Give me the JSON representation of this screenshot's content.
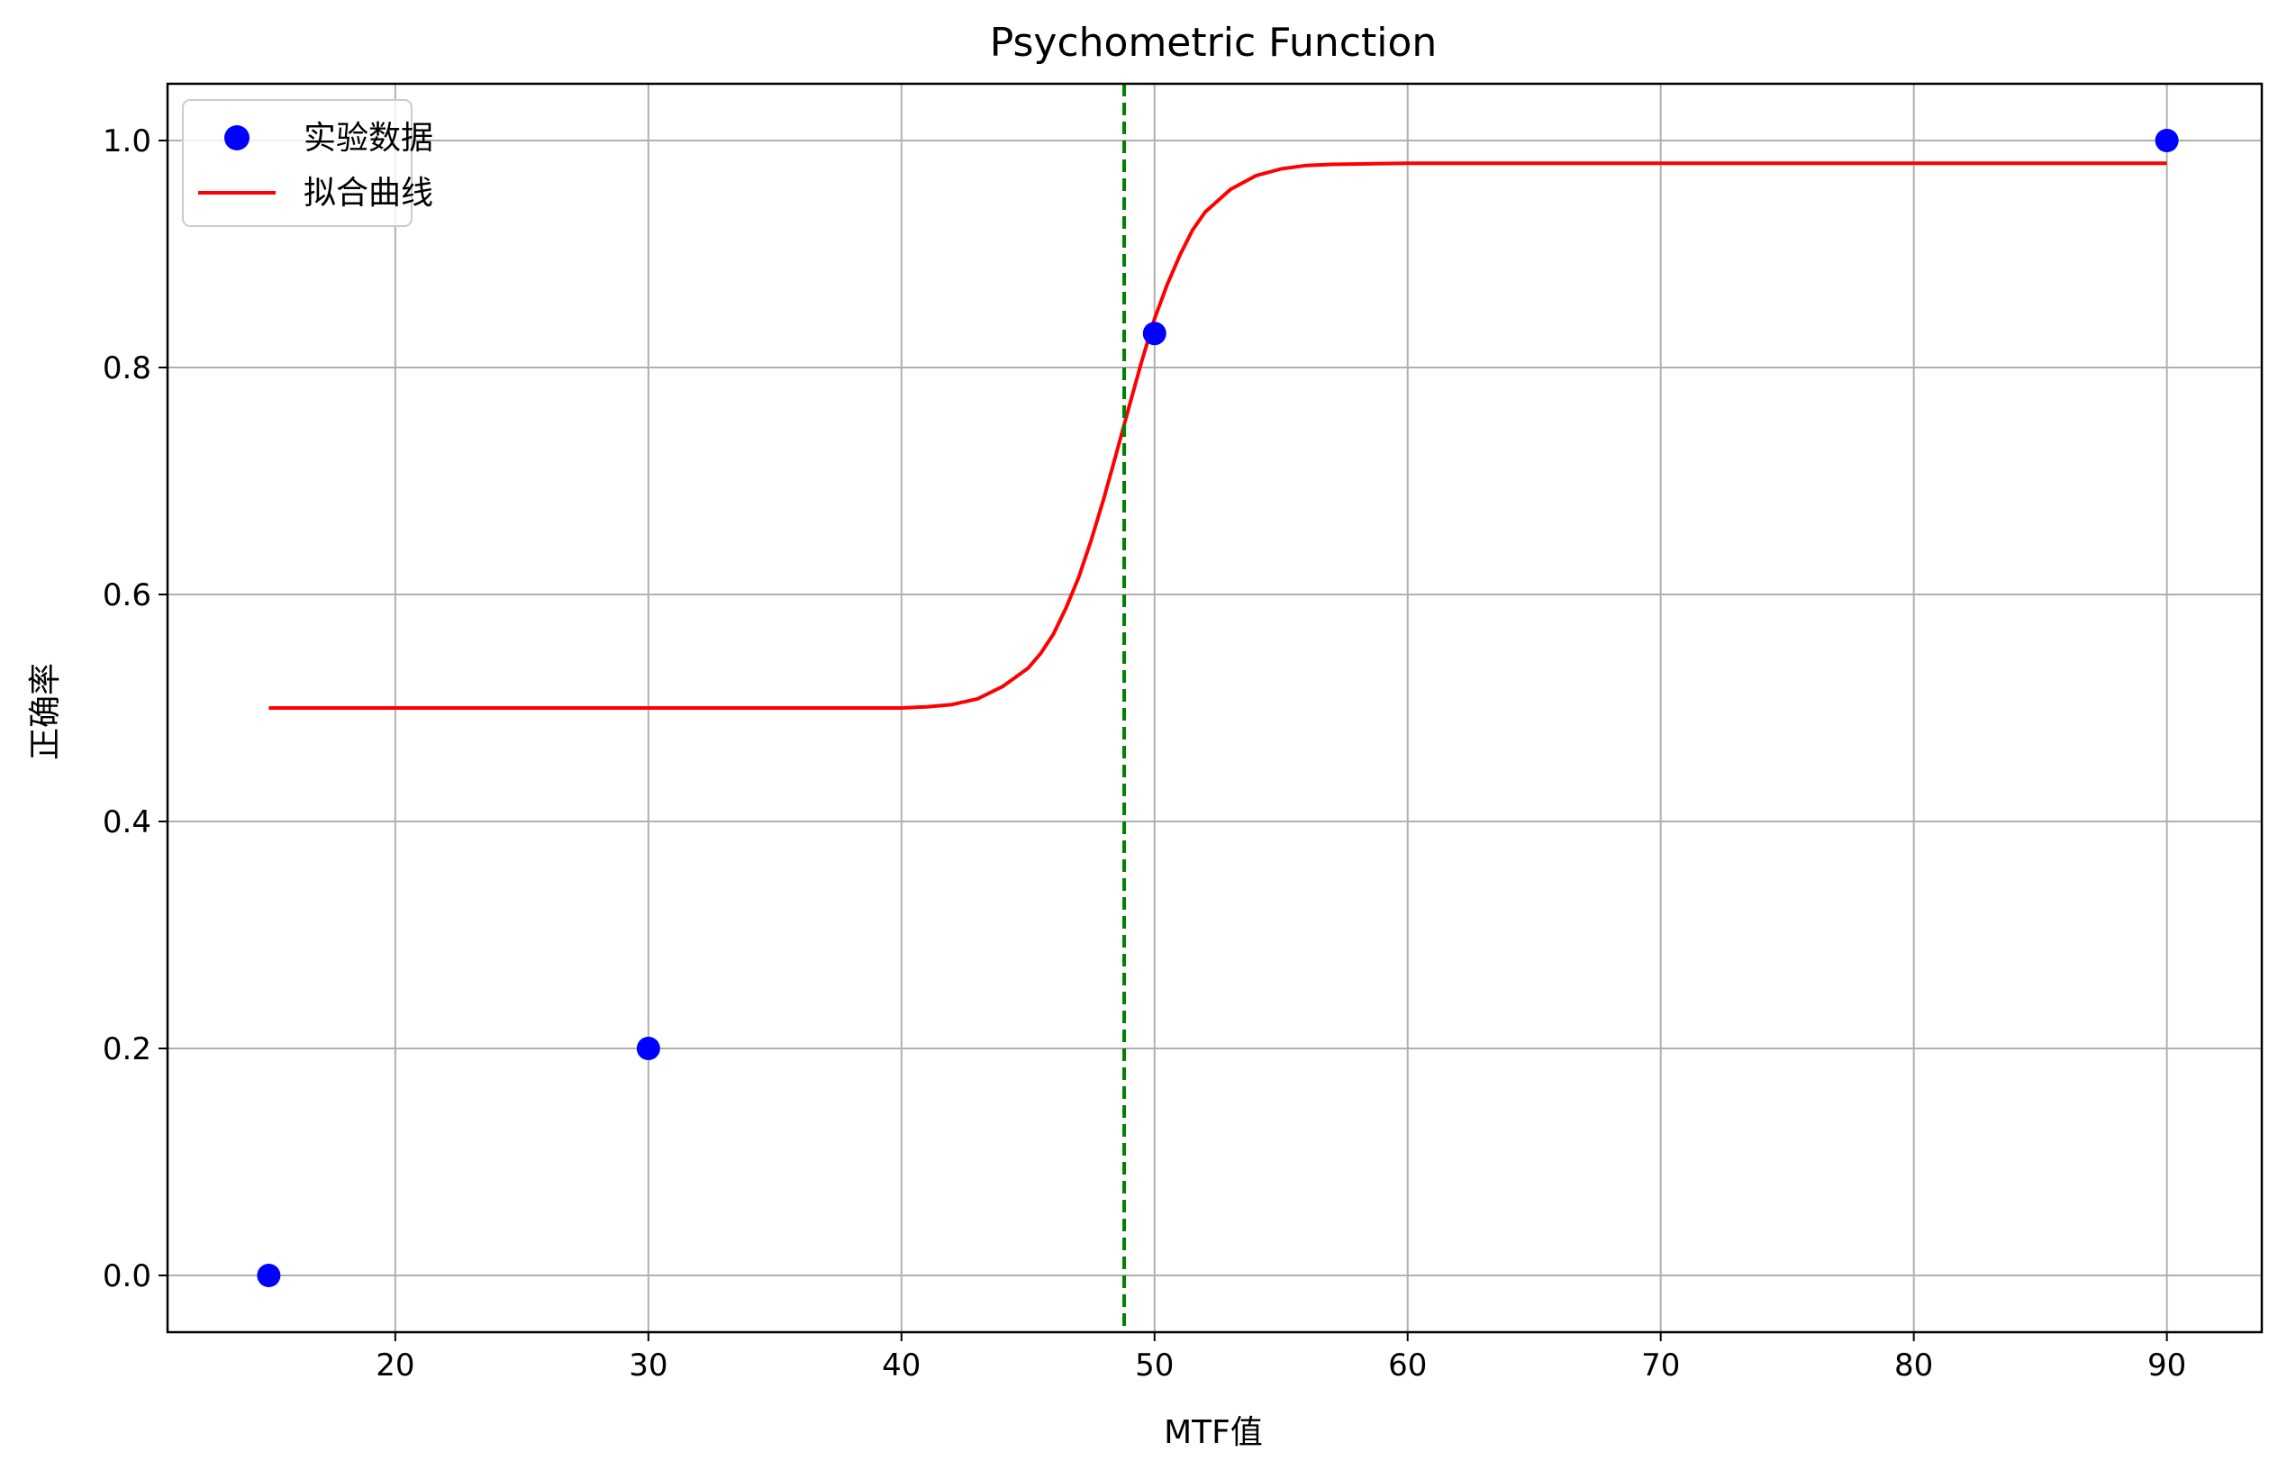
{
  "chart_data": {
    "type": "scatter",
    "title": "Psychometric Function",
    "xlabel": "MTF值",
    "ylabel": "正确率",
    "xlim": [
      11,
      93.75
    ],
    "ylim": [
      -0.05,
      1.05
    ],
    "xticks": [
      20,
      30,
      40,
      50,
      60,
      70,
      80,
      90
    ],
    "yticks": [
      0.0,
      0.2,
      0.4,
      0.6,
      0.8,
      1.0
    ],
    "xtick_labels": [
      "20",
      "30",
      "40",
      "50",
      "60",
      "70",
      "80",
      "90"
    ],
    "ytick_labels": [
      "0.0",
      "0.2",
      "0.4",
      "0.6",
      "0.8",
      "1.0"
    ],
    "grid": true,
    "legend_position": "top-left",
    "series": [
      {
        "name": "实验数据",
        "kind": "scatter",
        "color": "#0000ff",
        "x": [
          15,
          30,
          50,
          90
        ],
        "y": [
          0.0,
          0.2,
          0.83,
          1.0
        ]
      },
      {
        "name": "拟合曲线",
        "kind": "line",
        "color": "#ff0000",
        "x": [
          15,
          20,
          25,
          30,
          35,
          40,
          41,
          42,
          43,
          44,
          45,
          45.5,
          46,
          46.5,
          47,
          47.5,
          48,
          48.5,
          49,
          49.5,
          50,
          50.5,
          51,
          51.5,
          52,
          53,
          54,
          55,
          56,
          57,
          60,
          70,
          80,
          90
        ],
        "y": [
          0.5,
          0.5,
          0.5,
          0.5,
          0.5,
          0.5,
          0.501,
          0.503,
          0.508,
          0.519,
          0.535,
          0.548,
          0.565,
          0.588,
          0.615,
          0.648,
          0.685,
          0.725,
          0.766,
          0.806,
          0.843,
          0.873,
          0.899,
          0.921,
          0.937,
          0.957,
          0.969,
          0.975,
          0.978,
          0.979,
          0.98,
          0.98,
          0.98,
          0.98
        ]
      }
    ],
    "threshold_line": {
      "x": 48.8,
      "color": "#008000",
      "style": "dashed"
    }
  }
}
